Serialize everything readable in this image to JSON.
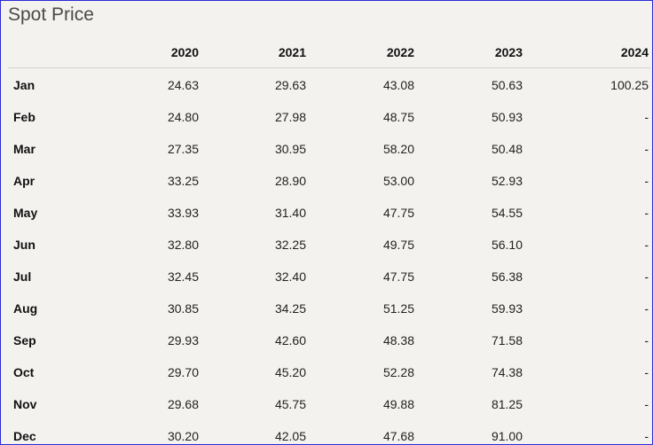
{
  "title": "Spot Price",
  "table": {
    "header": [
      "2020",
      "2021",
      "2022",
      "2023",
      "2024"
    ],
    "rows": [
      [
        "Jan",
        "24.63",
        "29.63",
        "43.08",
        "50.63",
        "100.25"
      ],
      [
        "Feb",
        "24.80",
        "27.98",
        "48.75",
        "50.93",
        "-"
      ],
      [
        "Mar",
        "27.35",
        "30.95",
        "58.20",
        "50.48",
        "-"
      ],
      [
        "Apr",
        "33.25",
        "28.90",
        "53.00",
        "52.93",
        "-"
      ],
      [
        "May",
        "33.93",
        "31.40",
        "47.75",
        "54.55",
        "-"
      ],
      [
        "Jun",
        "32.80",
        "32.25",
        "49.75",
        "56.10",
        "-"
      ],
      [
        "Jul",
        "32.45",
        "32.40",
        "47.75",
        "56.38",
        "-"
      ],
      [
        "Aug",
        "30.85",
        "34.25",
        "51.25",
        "59.93",
        "-"
      ],
      [
        "Sep",
        "29.93",
        "42.60",
        "48.38",
        "71.58",
        "-"
      ],
      [
        "Oct",
        "29.70",
        "45.20",
        "52.28",
        "74.38",
        "-"
      ],
      [
        "Nov",
        "29.68",
        "45.75",
        "49.88",
        "81.25",
        "-"
      ],
      [
        "Dec",
        "30.20",
        "42.05",
        "47.68",
        "91.00",
        "-"
      ]
    ]
  }
}
